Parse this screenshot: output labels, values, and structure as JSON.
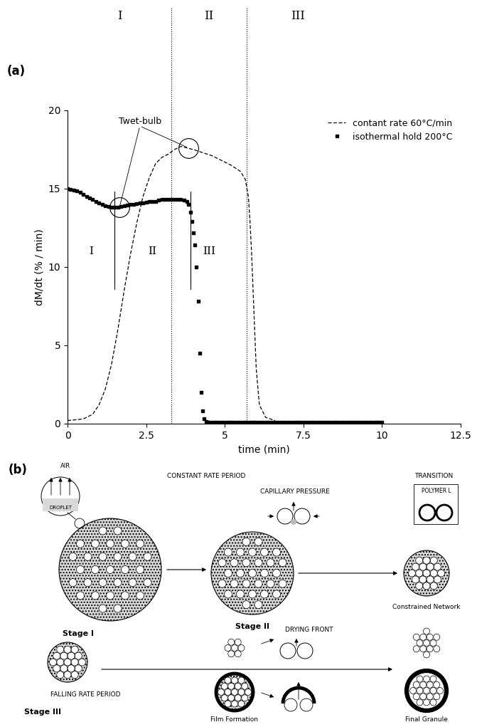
{
  "chart_data": {
    "type": "line",
    "label": "(a)",
    "x_label": "time (min)",
    "y_label": "dM/dt (% / min)",
    "xlim": [
      0,
      12.5
    ],
    "xticks": [
      0,
      2.5,
      5,
      7.5,
      10,
      12.5
    ],
    "ylim": [
      0,
      20
    ],
    "yticks": [
      0,
      5,
      10,
      15,
      20
    ],
    "legend": "upper right",
    "annotation": {
      "text": "Twet-bulb",
      "points": [
        [
          1.65,
          13.8
        ],
        [
          3.85,
          17.6
        ]
      ]
    },
    "series": [
      {
        "name": "contant rate 60°C/min",
        "color": "#000000",
        "line_style": "dashed",
        "stage_labels": [
          "I",
          "II",
          "III"
        ],
        "stage_boundaries": [
          3.3,
          5.7
        ],
        "x": [
          0,
          0.5,
          0.8,
          1.0,
          1.2,
          1.4,
          1.6,
          1.8,
          2.0,
          2.2,
          2.4,
          2.6,
          2.8,
          3.0,
          3.2,
          3.4,
          3.6,
          3.8,
          4.0,
          4.3,
          4.6,
          4.9,
          5.2,
          5.5,
          5.65,
          5.75,
          5.8,
          5.85,
          5.9,
          5.95,
          6.0,
          6.1,
          6.3,
          6.6
        ],
        "values": [
          0.2,
          0.3,
          0.6,
          1.2,
          2.2,
          3.8,
          6.0,
          8.5,
          10.8,
          12.8,
          14.5,
          15.7,
          16.6,
          17.0,
          17.2,
          17.5,
          17.7,
          17.6,
          17.5,
          17.3,
          17.1,
          16.8,
          16.5,
          16.1,
          15.6,
          14.5,
          13.0,
          11.0,
          8.5,
          6.0,
          3.5,
          1.2,
          0.4,
          0.2
        ]
      },
      {
        "name": "isothermal hold 200°C",
        "color": "#000000",
        "marker": "square",
        "stage_labels": [
          "I",
          "II",
          "III"
        ],
        "stage_boundaries": [
          1.5,
          3.9
        ],
        "x": [
          0,
          0.1,
          0.2,
          0.3,
          0.4,
          0.5,
          0.6,
          0.7,
          0.8,
          0.9,
          1.0,
          1.1,
          1.2,
          1.3,
          1.4,
          1.5,
          1.6,
          1.7,
          1.8,
          1.9,
          2.0,
          2.1,
          2.2,
          2.3,
          2.4,
          2.5,
          2.6,
          2.7,
          2.8,
          2.9,
          3.0,
          3.1,
          3.2,
          3.3,
          3.4,
          3.5,
          3.6,
          3.7,
          3.8,
          3.85,
          3.9,
          3.95,
          4.0,
          4.05,
          4.1,
          4.15,
          4.2,
          4.25,
          4.3,
          4.35,
          4.4,
          4.45,
          4.5,
          4.6,
          4.7,
          4.8,
          4.9,
          5.0,
          5.1,
          5.2,
          5.3,
          5.4,
          5.5,
          5.6,
          5.7,
          5.8,
          5.9,
          6.0,
          6.1,
          6.2,
          6.3,
          6.4,
          6.5,
          6.6,
          6.7,
          6.8,
          6.9,
          7.0,
          7.1,
          7.2,
          7.3,
          7.4,
          7.5,
          7.6,
          7.7,
          7.8,
          7.9,
          8.0,
          8.1,
          8.2,
          8.3,
          8.4,
          8.5,
          8.6,
          8.7,
          8.8,
          8.9,
          9.0,
          9.1,
          9.2,
          9.3,
          9.4,
          9.5,
          9.6,
          9.7,
          9.8,
          9.9,
          10.0
        ],
        "values": [
          15.0,
          14.95,
          14.9,
          14.85,
          14.75,
          14.65,
          14.5,
          14.4,
          14.3,
          14.2,
          14.1,
          14.0,
          13.9,
          13.85,
          13.8,
          13.8,
          13.8,
          13.85,
          13.9,
          13.95,
          14.0,
          14.0,
          14.05,
          14.1,
          14.1,
          14.15,
          14.2,
          14.2,
          14.2,
          14.25,
          14.3,
          14.3,
          14.3,
          14.3,
          14.3,
          14.3,
          14.3,
          14.25,
          14.2,
          14.0,
          13.5,
          12.9,
          12.2,
          11.4,
          10.0,
          7.8,
          4.5,
          2.0,
          0.8,
          0.3,
          0.15,
          0.1,
          0.1,
          0.1,
          0.1,
          0.1,
          0.1,
          0.1,
          0.1,
          0.1,
          0.1,
          0.1,
          0.1,
          0.1,
          0.1,
          0.1,
          0.1,
          0.1,
          0.1,
          0.1,
          0.1,
          0.1,
          0.1,
          0.1,
          0.1,
          0.1,
          0.1,
          0.1,
          0.1,
          0.1,
          0.1,
          0.1,
          0.1,
          0.1,
          0.1,
          0.1,
          0.1,
          0.1,
          0.1,
          0.1,
          0.1,
          0.1,
          0.1,
          0.1,
          0.1,
          0.1,
          0.1,
          0.1,
          0.1,
          0.1,
          0.1,
          0.1,
          0.1,
          0.1,
          0.1,
          0.1,
          0.1,
          0.1
        ]
      }
    ]
  },
  "diagram": {
    "label": "(b)",
    "texts": {
      "constant_rate_period": "CONSTANT RATE PERIOD",
      "air": "AIR",
      "droplet": "DROPLET",
      "stage_1": "Stage I",
      "stage_2": "Stage II",
      "capillary_pressure": "CAPILLARY PRESSURE",
      "transition": "TRANSITION",
      "polymer_layer": "POLYMER L",
      "constrained_network": "Constrained Network",
      "stage_3": "Stage III",
      "falling_rate_period": "FALLING RATE PERIOD",
      "drying_front": "DRYING FRONT",
      "film_formation": "Film Formation",
      "final_granule": "Final Granule"
    }
  }
}
